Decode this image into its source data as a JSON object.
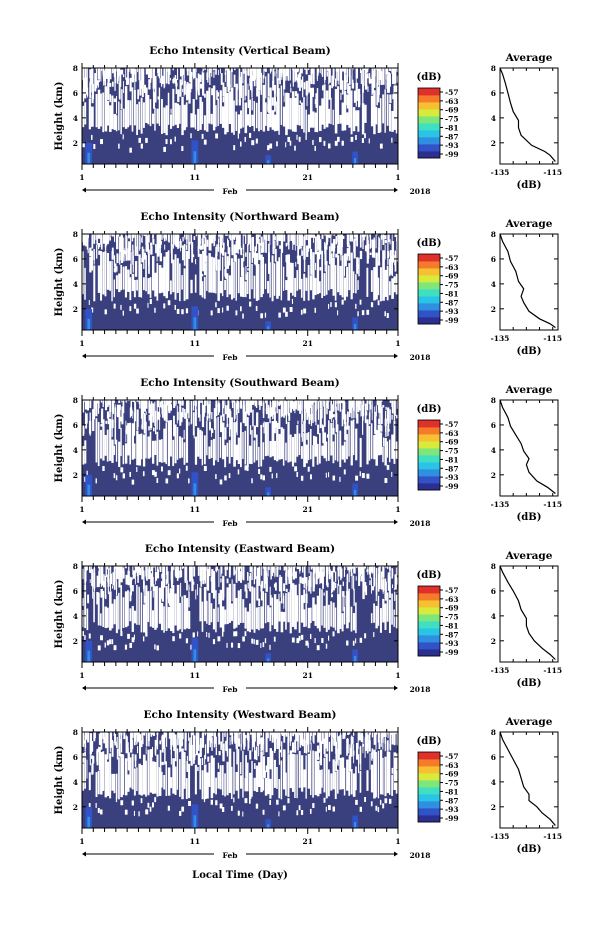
{
  "figure": {
    "xaxis_title": "Local Time (Day)",
    "month_label": "Feb",
    "year_label": "2018",
    "x_ticks": [
      "1",
      "11",
      "21",
      "1"
    ],
    "height_label": "Height (km)",
    "colorbar_unit": "(dB)",
    "colorbar_ticks": [
      "-57",
      "-63",
      "-69",
      "-75",
      "-81",
      "-87",
      "-93",
      "-99"
    ],
    "avg_title": "Average",
    "avg_xlabel": "(dB)"
  },
  "colors": {
    "background_fill": "#3a3f7d",
    "colormap": [
      "#2b2f8f",
      "#3253c8",
      "#2f8fe0",
      "#29c4e6",
      "#3fe0c2",
      "#7fe67a",
      "#d8ea3c",
      "#f7c030",
      "#f57a2a",
      "#e0302a"
    ]
  },
  "chart_data": [
    {
      "type": "heatmap",
      "title": "Echo Intensity (Vertical Beam)",
      "ylabel": "Height (km)",
      "xlabel": "Feb",
      "x_ticklabels": [
        "1",
        "11",
        "21",
        "1"
      ],
      "xlim_days": [
        1,
        29
      ],
      "ylim": [
        0.3,
        8
      ],
      "y_ticks": [
        2,
        4,
        6,
        8
      ],
      "colorbar": {
        "label": "(dB)",
        "ticks": [
          -57,
          -63,
          -69,
          -75,
          -81,
          -87,
          -93,
          -99
        ]
      },
      "average_profile": {
        "title": "Average",
        "xlabel": "(dB)",
        "xlim": [
          -135,
          -113
        ],
        "x_ticks": [
          -135,
          -115
        ],
        "y_ticks": [
          2,
          4,
          6,
          8
        ],
        "x": [
          -114,
          -116,
          -118,
          -123,
          -127,
          -128,
          -128,
          -130,
          -131,
          -132,
          -133,
          -134,
          -135
        ],
        "y": [
          0.5,
          1.0,
          1.3,
          1.8,
          2.6,
          3.2,
          3.8,
          4.5,
          5.2,
          6.0,
          6.8,
          7.5,
          8.0
        ]
      }
    },
    {
      "type": "heatmap",
      "title": "Echo Intensity (Northward Beam)",
      "ylabel": "Height (km)",
      "xlabel": "Feb",
      "x_ticklabels": [
        "1",
        "11",
        "21",
        "1"
      ],
      "xlim_days": [
        1,
        29
      ],
      "ylim": [
        0.3,
        8
      ],
      "y_ticks": [
        2,
        4,
        6,
        8
      ],
      "colorbar": {
        "label": "(dB)",
        "ticks": [
          -57,
          -63,
          -69,
          -75,
          -81,
          -87,
          -93,
          -99
        ]
      },
      "average_profile": {
        "title": "Average",
        "xlabel": "(dB)",
        "xlim": [
          -135,
          -113
        ],
        "x_ticks": [
          -135,
          -115
        ],
        "y_ticks": [
          2,
          4,
          6,
          8
        ],
        "x": [
          -114,
          -116,
          -120,
          -124,
          -126,
          -127,
          -126,
          -128,
          -129,
          -131,
          -132,
          -134,
          -135
        ],
        "y": [
          0.5,
          0.8,
          1.2,
          1.8,
          2.5,
          3.0,
          3.6,
          4.2,
          5.0,
          5.8,
          6.6,
          7.4,
          8.0
        ]
      }
    },
    {
      "type": "heatmap",
      "title": "Echo Intensity (Southward Beam)",
      "ylabel": "Height (km)",
      "xlabel": "Feb",
      "x_ticklabels": [
        "1",
        "11",
        "21",
        "1"
      ],
      "xlim_days": [
        1,
        29
      ],
      "ylim": [
        0.3,
        8
      ],
      "y_ticks": [
        2,
        4,
        6,
        8
      ],
      "colorbar": {
        "label": "(dB)",
        "ticks": [
          -57,
          -63,
          -69,
          -75,
          -81,
          -87,
          -93,
          -99
        ]
      },
      "average_profile": {
        "title": "Average",
        "xlabel": "(dB)",
        "xlim": [
          -135,
          -113
        ],
        "x_ticks": [
          -135,
          -115
        ],
        "y_ticks": [
          2,
          4,
          6,
          8
        ],
        "x": [
          -114,
          -117,
          -121,
          -124,
          -125,
          -124,
          -126,
          -127,
          -129,
          -131,
          -132,
          -134,
          -135
        ],
        "y": [
          0.5,
          1.0,
          1.5,
          2.2,
          2.8,
          3.3,
          3.9,
          4.5,
          5.2,
          5.9,
          6.6,
          7.4,
          8.0
        ]
      }
    },
    {
      "type": "heatmap",
      "title": "Echo Intensity (Eastward Beam)",
      "ylabel": "Height (km)",
      "xlabel": "Feb",
      "x_ticklabels": [
        "1",
        "11",
        "21",
        "1"
      ],
      "xlim_days": [
        1,
        29
      ],
      "ylim": [
        0.3,
        8
      ],
      "y_ticks": [
        2,
        4,
        6,
        8
      ],
      "colorbar": {
        "label": "(dB)",
        "ticks": [
          -57,
          -63,
          -69,
          -75,
          -81,
          -87,
          -93,
          -99
        ]
      },
      "average_profile": {
        "title": "Average",
        "xlabel": "(dB)",
        "xlim": [
          -135,
          -113
        ],
        "x_ticks": [
          -135,
          -115
        ],
        "y_ticks": [
          2,
          4,
          6,
          8
        ],
        "x": [
          -114,
          -116,
          -119,
          -122,
          -124,
          -125,
          -125,
          -127,
          -128,
          -130,
          -132,
          -134,
          -135
        ],
        "y": [
          0.5,
          0.9,
          1.4,
          2.0,
          2.6,
          3.2,
          3.8,
          4.5,
          5.2,
          6.0,
          6.7,
          7.5,
          8.0
        ]
      }
    },
    {
      "type": "heatmap",
      "title": "Echo Intensity (Westward Beam)",
      "ylabel": "Height (km)",
      "xlabel": "Feb",
      "x_ticklabels": [
        "1",
        "11",
        "21",
        "1"
      ],
      "xlim_days": [
        1,
        29
      ],
      "ylim": [
        0.3,
        8
      ],
      "y_ticks": [
        2,
        4,
        6,
        8
      ],
      "colorbar": {
        "label": "(dB)",
        "ticks": [
          -57,
          -63,
          -69,
          -75,
          -81,
          -87,
          -93,
          -99
        ]
      },
      "average_profile": {
        "title": "Average",
        "xlabel": "(dB)",
        "xlim": [
          -135,
          -113
        ],
        "x_ticks": [
          -135,
          -115
        ],
        "y_ticks": [
          2,
          4,
          6,
          8
        ],
        "x": [
          -114,
          -116,
          -119,
          -121,
          -124,
          -124,
          -126,
          -127,
          -128,
          -130,
          -132,
          -134,
          -135
        ],
        "y": [
          0.5,
          1.0,
          1.5,
          2.0,
          2.5,
          3.0,
          3.6,
          4.3,
          5.0,
          5.8,
          6.6,
          7.4,
          8.0
        ]
      }
    }
  ]
}
